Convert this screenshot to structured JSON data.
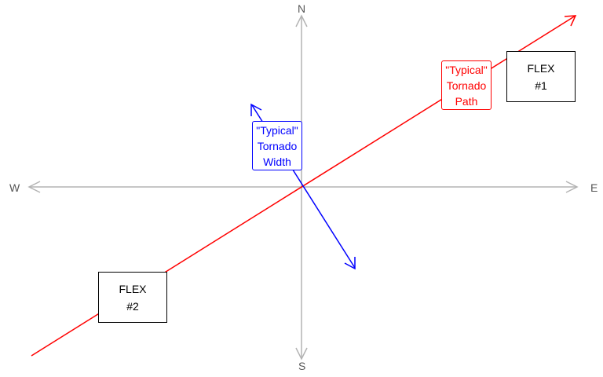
{
  "compass": {
    "north": "N",
    "south": "S",
    "east": "E",
    "west": "W",
    "axis_color": "#b3b3b3"
  },
  "tornado_path": {
    "color": "#ff0000",
    "line1": "\"Typical\"",
    "line2": "Tornado",
    "line3": "Path"
  },
  "tornado_width": {
    "color": "#0000ff",
    "line1": "\"Typical\"",
    "line2": "Tornado",
    "line3": "Width"
  },
  "flex1": {
    "line1": "FLEX",
    "line2": "#1"
  },
  "flex2": {
    "line1": "FLEX",
    "line2": "#2"
  }
}
